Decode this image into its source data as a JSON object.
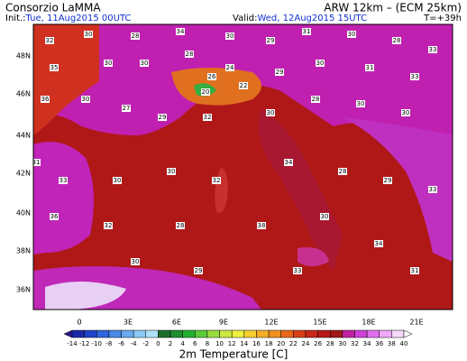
{
  "header": {
    "org": "Consorzio LaMMA",
    "model": "ARW 12km – (ECM 25km)",
    "init_label": "Init.:",
    "init": "Tue, 11Aug2015 00UTC",
    "valid_label": "Valid:",
    "valid": "Wed, 12Aug2015 15UTC",
    "lead": "T=+39h"
  },
  "lat_labels": [
    "48N",
    "46N",
    "44N",
    "42N",
    "40N",
    "38N",
    "36N"
  ],
  "lon_labels": [
    "0",
    "3E",
    "6E",
    "9E",
    "12E",
    "15E",
    "18E",
    "21E"
  ],
  "colorbar": {
    "title": "2m Temperature [C]",
    "labels": [
      -14,
      -12,
      -10,
      -8,
      -6,
      -4,
      -2,
      0,
      2,
      4,
      6,
      8,
      10,
      12,
      14,
      16,
      18,
      20,
      22,
      24,
      26,
      28,
      30,
      32,
      34,
      36,
      38,
      40
    ],
    "colors": [
      "#2a1a8a",
      "#1c2aa8",
      "#1e44c8",
      "#2f66dd",
      "#4a8ae6",
      "#6aaaf0",
      "#8ccaf6",
      "#b0e2fa",
      "#1a6e2a",
      "#1f8e2e",
      "#22b030",
      "#5ccc38",
      "#98dd40",
      "#cce840",
      "#f0f040",
      "#f5d030",
      "#f5b028",
      "#f09020",
      "#e86818",
      "#d84018",
      "#c82818",
      "#b81818",
      "#a01818",
      "#c020a0",
      "#d040d8",
      "#e070f0",
      "#f0a8f8",
      "#f8d8fc",
      "#ffffff"
    ]
  },
  "stations": [
    32,
    30,
    28,
    34,
    30,
    29,
    31,
    30,
    28,
    33,
    35,
    30,
    30,
    28,
    26,
    24,
    20,
    22,
    29,
    30,
    31,
    33,
    36,
    30,
    27,
    29,
    32,
    30,
    28,
    30,
    30,
    31,
    33,
    30,
    30,
    32,
    34,
    28,
    29,
    33,
    36,
    32,
    28,
    38,
    30,
    34,
    30,
    29,
    33,
    31
  ]
}
